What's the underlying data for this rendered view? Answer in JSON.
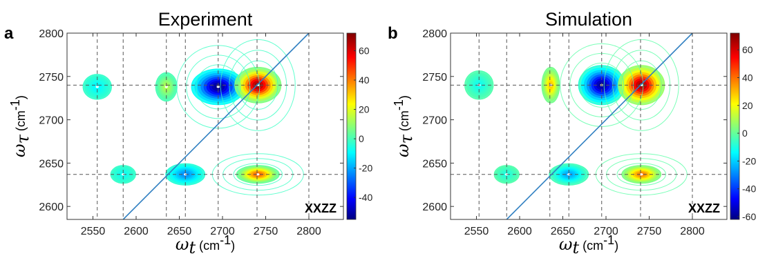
{
  "chart_data": [
    {
      "type": "heatmap",
      "panel_label": "a",
      "title": "Experiment",
      "xlabel_symbol": "ω",
      "xlabel_sub": "t",
      "xlabel_unit": "(cm",
      "xlabel_sup": "-1",
      "xlabel_close": ")",
      "ylabel_symbol": "ω",
      "ylabel_sub": "τ",
      "ylabel_unit": "(cm",
      "ylabel_sup": "-1",
      "ylabel_close": ")",
      "xlim": [
        2520,
        2840
      ],
      "ylim": [
        2585,
        2800
      ],
      "xticks": [
        2550,
        2600,
        2650,
        2700,
        2750,
        2800
      ],
      "yticks": [
        2600,
        2650,
        2700,
        2750,
        2800
      ],
      "vertical_dashed_lines": [
        2555,
        2585,
        2635,
        2657,
        2695,
        2740,
        2800
      ],
      "horizontal_dashed_lines": [
        2740,
        2637
      ],
      "diagonal": true,
      "polarization_tag": "XXZZ",
      "colorbar": {
        "min": -55,
        "max": 72,
        "ticks": [
          60,
          40,
          20,
          0,
          -20,
          -40
        ]
      },
      "peaks": [
        {
          "x": 2695,
          "y": 2738,
          "amplitude": -55,
          "sx": 15,
          "sy": 10
        },
        {
          "x": 2741,
          "y": 2740,
          "amplitude": 70,
          "sx": 13,
          "sy": 10
        },
        {
          "x": 2657,
          "y": 2637,
          "amplitude": -22,
          "sx": 11,
          "sy": 6
        },
        {
          "x": 2741,
          "y": 2637,
          "amplitude": 45,
          "sx": 12,
          "sy": 5
        },
        {
          "x": 2555,
          "y": 2738,
          "amplitude": -8,
          "sx": 8,
          "sy": 7
        },
        {
          "x": 2585,
          "y": 2637,
          "amplitude": -6,
          "sx": 7,
          "sy": 5
        },
        {
          "x": 2635,
          "y": 2738,
          "amplitude": 15,
          "sx": 6,
          "sy": 8
        }
      ]
    },
    {
      "type": "heatmap",
      "panel_label": "b",
      "title": "Simulation",
      "xlabel_symbol": "ω",
      "xlabel_sub": "t",
      "xlabel_unit": "(cm",
      "xlabel_sup": "-1",
      "xlabel_close": ")",
      "ylabel_symbol": "ω",
      "ylabel_sub": "τ",
      "ylabel_unit": "(cm",
      "ylabel_sup": "-1",
      "ylabel_close": ")",
      "xlim": [
        2520,
        2840
      ],
      "ylim": [
        2585,
        2800
      ],
      "xticks": [
        2550,
        2600,
        2650,
        2700,
        2750,
        2800
      ],
      "yticks": [
        2600,
        2650,
        2700,
        2750,
        2800
      ],
      "vertical_dashed_lines": [
        2553,
        2585,
        2635,
        2657,
        2695,
        2740,
        2800
      ],
      "horizontal_dashed_lines": [
        2740,
        2637
      ],
      "diagonal": true,
      "polarization_tag": "XXZZ",
      "colorbar": {
        "min": -62,
        "max": 72,
        "ticks": [
          60,
          40,
          20,
          0,
          -20,
          -40,
          -60
        ]
      },
      "peaks": [
        {
          "x": 2695,
          "y": 2740,
          "amplitude": -60,
          "sx": 13,
          "sy": 11
        },
        {
          "x": 2741,
          "y": 2740,
          "amplitude": 70,
          "sx": 13,
          "sy": 11
        },
        {
          "x": 2657,
          "y": 2637,
          "amplitude": -24,
          "sx": 11,
          "sy": 6
        },
        {
          "x": 2741,
          "y": 2637,
          "amplitude": 40,
          "sx": 11,
          "sy": 5
        },
        {
          "x": 2553,
          "y": 2740,
          "amplitude": -10,
          "sx": 8,
          "sy": 8
        },
        {
          "x": 2585,
          "y": 2637,
          "amplitude": -8,
          "sx": 7,
          "sy": 5
        },
        {
          "x": 2636,
          "y": 2740,
          "amplitude": 30,
          "sx": 5,
          "sy": 10
        }
      ]
    }
  ]
}
